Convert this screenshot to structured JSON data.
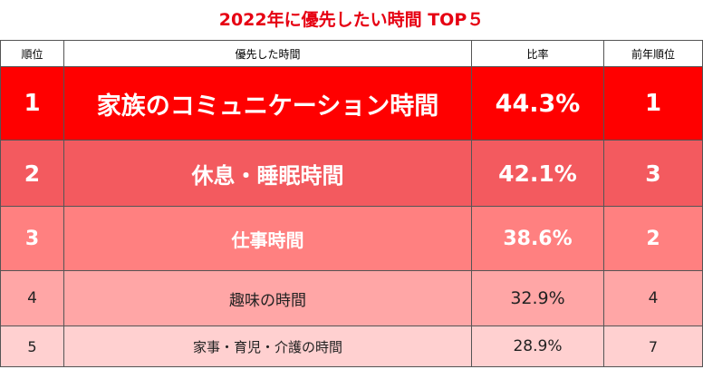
{
  "chart_data": {
    "type": "table",
    "title": "2022年に優先したい時間 TOP５",
    "columns": [
      "順位",
      "優先した時間",
      "比率",
      "前年順位"
    ],
    "rows": [
      {
        "rank": "1",
        "item": "家族のコミュニケーション時間",
        "percent": "44.3%",
        "value": 44.3,
        "prev_rank": "1"
      },
      {
        "rank": "2",
        "item": "休息・睡眠時間",
        "percent": "42.1%",
        "value": 42.1,
        "prev_rank": "3"
      },
      {
        "rank": "3",
        "item": "仕事時間",
        "percent": "38.6%",
        "value": 38.6,
        "prev_rank": "2"
      },
      {
        "rank": "4",
        "item": "趣味の時間",
        "percent": "32.9%",
        "value": 32.9,
        "prev_rank": "4"
      },
      {
        "rank": "5",
        "item": "家事・育児・介護の時間",
        "percent": "28.9%",
        "value": 28.9,
        "prev_rank": "7"
      }
    ]
  },
  "colors": {
    "title": "#e60012",
    "row1": "#ff0000",
    "row2": "#f35a5f",
    "row3": "#ff8080",
    "row4": "#ffa6a6",
    "row5": "#ffd0d0"
  }
}
